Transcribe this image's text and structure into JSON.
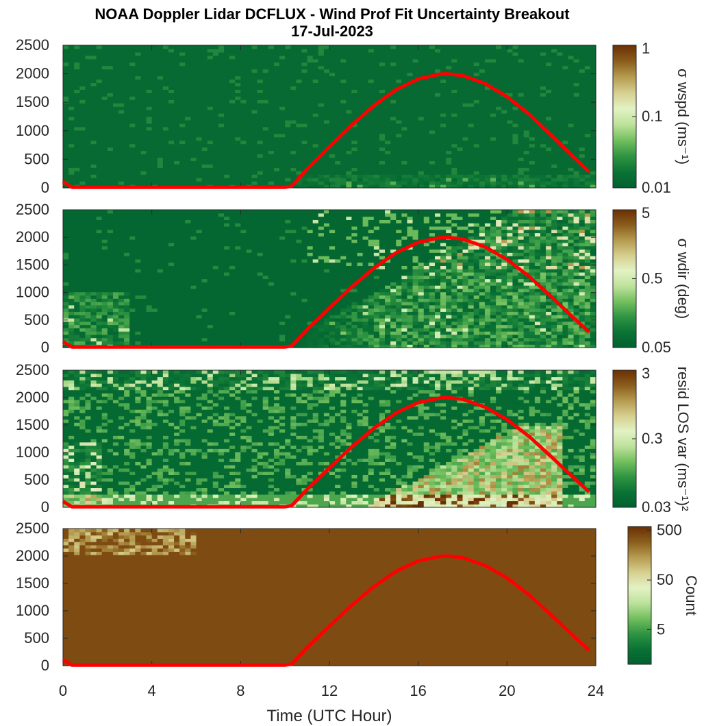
{
  "title_line1": "NOAA Doppler Lidar DCFLUX - Wind Prof Fit Uncertainty Breakout",
  "title_line2": "17-Jul-2023",
  "chart_data": [
    {
      "type": "heatmap",
      "colorbar_label": "σ wspd (ms⁻¹)",
      "colorbar_ticks": [
        "1",
        "0.1",
        "0.01"
      ],
      "colorbar_scale": "log",
      "colorbar_range": [
        0.01,
        1
      ],
      "ylim": [
        0,
        2500
      ],
      "ytick_labels": [
        "0",
        "500",
        "1000",
        "1500",
        "2000",
        "2500"
      ],
      "background_value": "low"
    },
    {
      "type": "heatmap",
      "colorbar_label": "σ wdir (deg)",
      "colorbar_ticks": [
        "5",
        "0.5",
        "0.05"
      ],
      "colorbar_scale": "log",
      "colorbar_range": [
        0.05,
        5
      ],
      "ylim": [
        0,
        2500
      ],
      "ytick_labels": [
        "0",
        "500",
        "1000",
        "1500",
        "2000",
        "2500"
      ],
      "background_value": "low"
    },
    {
      "type": "heatmap",
      "colorbar_label": "resid LOS var (ms⁻¹)²",
      "colorbar_ticks": [
        "3",
        "0.3",
        "0.03"
      ],
      "colorbar_scale": "log",
      "colorbar_range": [
        0.03,
        3
      ],
      "ylim": [
        0,
        2500
      ],
      "ytick_labels": [
        "0",
        "500",
        "1000",
        "1500",
        "2000",
        "2500"
      ],
      "background_value": "low"
    },
    {
      "type": "heatmap",
      "colorbar_label": "Count",
      "colorbar_ticks": [
        "500",
        "50",
        "5"
      ],
      "colorbar_scale": "log",
      "colorbar_range": [
        1,
        600
      ],
      "ylim": [
        0,
        2500
      ],
      "ytick_labels": [
        "0",
        "500",
        "1000",
        "1500",
        "2000",
        "2500"
      ],
      "background_value": "high"
    }
  ],
  "xaxis": {
    "label": "Time (UTC Hour)",
    "range": [
      0,
      24
    ],
    "tick_labels": [
      "0",
      "4",
      "8",
      "12",
      "16",
      "20",
      "24"
    ]
  },
  "overlay_line": {
    "color": "#ff0000",
    "x": [
      0,
      0.4,
      10,
      10.3,
      11,
      12,
      13,
      14,
      15,
      16,
      17,
      17.3,
      18,
      19,
      20,
      21,
      22,
      23,
      23.7
    ],
    "y": [
      110,
      10,
      10,
      30,
      330,
      720,
      1100,
      1440,
      1720,
      1910,
      1995,
      2000,
      1970,
      1830,
      1600,
      1290,
      920,
      540,
      280
    ]
  },
  "colormap": [
    "#00602f",
    "#0b7335",
    "#2f9442",
    "#73bf5e",
    "#bde29b",
    "#e3f2c4",
    "#d6cf8f",
    "#b59b4f",
    "#8a5d1c",
    "#6a2f03"
  ]
}
